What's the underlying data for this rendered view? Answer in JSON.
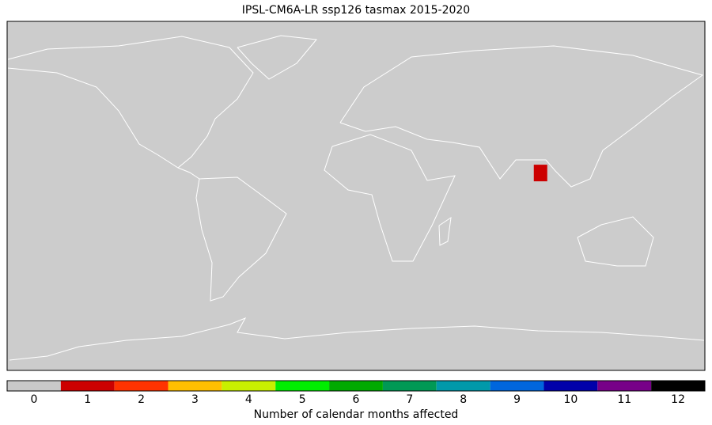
{
  "chart_data": {
    "type": "map",
    "title": "IPSL-CM6A-LR ssp126 tasmax 2015-2020",
    "colorbar": {
      "label": "Number of calendar months affected",
      "ticks": [
        0,
        1,
        2,
        3,
        4,
        5,
        6,
        7,
        8,
        9,
        10,
        11,
        12
      ],
      "colors": [
        "#c8c8c8",
        "#cc0000",
        "#ff3300",
        "#ffbf00",
        "#c8f000",
        "#00ee00",
        "#00aa00",
        "#009955",
        "#0099aa",
        "#0066dd",
        "#0000aa",
        "#770088",
        "#000000"
      ]
    },
    "xlim": [
      -180,
      180
    ],
    "ylim": [
      -90,
      90
    ],
    "cells": [
      {
        "lon": 95,
        "lat": 12,
        "value": 1
      }
    ]
  }
}
